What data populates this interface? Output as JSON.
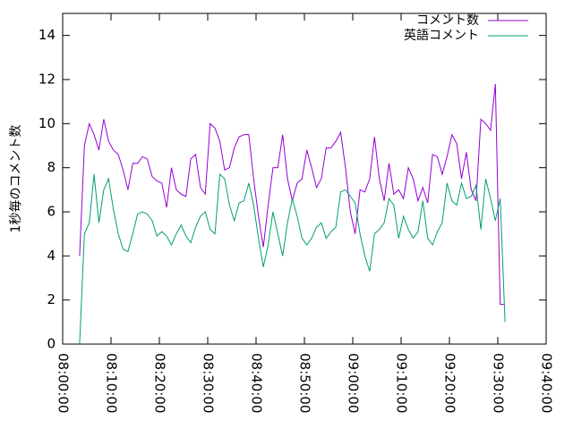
{
  "chart_data": {
    "type": "line",
    "y_label": "1秒毎のコメント数",
    "x": [
      "08:03:30",
      "08:04:30",
      "08:05:30",
      "08:06:30",
      "08:07:30",
      "08:08:30",
      "08:09:30",
      "08:10:30",
      "08:11:30",
      "08:12:30",
      "08:13:30",
      "08:14:30",
      "08:15:30",
      "08:16:30",
      "08:17:30",
      "08:18:30",
      "08:19:30",
      "08:20:30",
      "08:21:30",
      "08:22:30",
      "08:23:30",
      "08:24:30",
      "08:25:30",
      "08:26:30",
      "08:27:30",
      "08:28:30",
      "08:29:30",
      "08:30:30",
      "08:31:30",
      "08:32:30",
      "08:33:30",
      "08:34:30",
      "08:35:30",
      "08:36:30",
      "08:37:30",
      "08:38:30",
      "08:39:30",
      "08:40:30",
      "08:41:30",
      "08:42:30",
      "08:43:30",
      "08:44:30",
      "08:45:30",
      "08:46:30",
      "08:47:30",
      "08:48:30",
      "08:49:30",
      "08:50:30",
      "08:51:30",
      "08:52:30",
      "08:53:30",
      "08:54:30",
      "08:55:30",
      "08:56:30",
      "08:57:30",
      "08:58:30",
      "08:59:30",
      "09:00:30",
      "09:01:30",
      "09:02:30",
      "09:03:30",
      "09:04:30",
      "09:05:30",
      "09:06:30",
      "09:07:30",
      "09:08:30",
      "09:09:30",
      "09:10:30",
      "09:11:30",
      "09:12:30",
      "09:13:30",
      "09:14:30",
      "09:15:30",
      "09:16:30",
      "09:17:30",
      "09:18:30",
      "09:19:30",
      "09:20:30",
      "09:21:30",
      "09:22:30",
      "09:23:30",
      "09:24:30",
      "09:25:30",
      "09:26:30",
      "09:27:30",
      "09:28:30",
      "09:29:30",
      "09:30:30",
      "09:31:30"
    ],
    "series": [
      {
        "name": "コメント数",
        "color": "#9400d3",
        "values": [
          4.0,
          9.0,
          10.0,
          9.5,
          8.8,
          10.2,
          9.2,
          8.8,
          8.6,
          7.9,
          7.0,
          8.2,
          8.2,
          8.5,
          8.4,
          7.6,
          7.4,
          7.3,
          6.2,
          8.0,
          7.0,
          6.8,
          6.7,
          8.4,
          8.6,
          7.1,
          6.8,
          10.0,
          9.8,
          9.2,
          7.9,
          8.0,
          8.9,
          9.4,
          9.5,
          9.5,
          7.5,
          5.8,
          4.4,
          6.3,
          8.0,
          8.0,
          9.5,
          7.5,
          6.5,
          7.3,
          7.5,
          8.8,
          8.0,
          7.1,
          7.5,
          8.9,
          8.9,
          9.2,
          9.6,
          8.0,
          6.0,
          5.0,
          7.0,
          6.9,
          7.5,
          9.4,
          7.5,
          6.5,
          8.2,
          6.8,
          7.0,
          6.6,
          8.0,
          7.5,
          6.5,
          7.1,
          6.4,
          8.6,
          8.5,
          7.7,
          8.5,
          9.5,
          9.1,
          7.5,
          8.7,
          7.0,
          6.5,
          10.2,
          10.0,
          9.7,
          11.8,
          1.8,
          1.8
        ]
      },
      {
        "name": "英語コメント",
        "color": "#009e73",
        "values": [
          0,
          5,
          5.5,
          7.7,
          5.5,
          7,
          7.5,
          6.1,
          5,
          4.3,
          4.2,
          5,
          5.9,
          6.0,
          5.9,
          5.6,
          4.9,
          5.1,
          4.9,
          4.5,
          5.0,
          5.4,
          4.9,
          4.6,
          5.3,
          5.8,
          6.0,
          5.2,
          5.0,
          7.7,
          7.5,
          6.3,
          5.6,
          6.4,
          6.5,
          7.3,
          6.3,
          4.8,
          3.5,
          4.5,
          6.0,
          5.0,
          4.0,
          5.5,
          6.6,
          5.8,
          4.8,
          4.5,
          4.8,
          5.3,
          5.5,
          4.8,
          5.1,
          5.3,
          6.9,
          7.0,
          6.7,
          6.4,
          5.0,
          4.0,
          3.3,
          5.0,
          5.2,
          5.5,
          6.6,
          6.3,
          4.8,
          5.8,
          5.2,
          4.8,
          5.1,
          6.5,
          4.8,
          4.5,
          5.1,
          5.5,
          7.3,
          6.5,
          6.3,
          7.3,
          6.6,
          6.7,
          7.2,
          5.2,
          7.5,
          6.6,
          5.6,
          6.6,
          1.0
        ]
      }
    ],
    "xlim": [
      "08:00:00",
      "09:40:00"
    ],
    "xticks": [
      "08:00:00",
      "08:10:00",
      "08:20:00",
      "08:30:00",
      "08:40:00",
      "08:50:00",
      "09:00:00",
      "09:10:00",
      "09:20:00",
      "09:30:00",
      "09:40:00"
    ],
    "ylim": [
      0,
      15
    ],
    "yticks": [
      0,
      2,
      4,
      6,
      8,
      10,
      12,
      14
    ],
    "legend": "top-right"
  }
}
